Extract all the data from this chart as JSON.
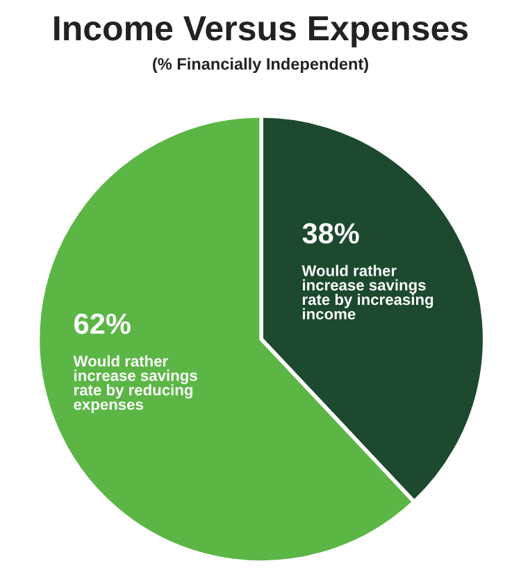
{
  "chart_data": {
    "type": "pie",
    "title": "Income Versus Expenses",
    "subtitle": "(% Financially Independent)",
    "categories": [
      "Would rather\nincrease savings\nrate by increasing\nincome",
      "Would rather\nincrease savings\nrate by reducing\nexpenses"
    ],
    "values": [
      38,
      62
    ],
    "value_labels": [
      "38%",
      "62%"
    ],
    "colors": [
      "#1d4a2f",
      "#5cb646"
    ]
  }
}
